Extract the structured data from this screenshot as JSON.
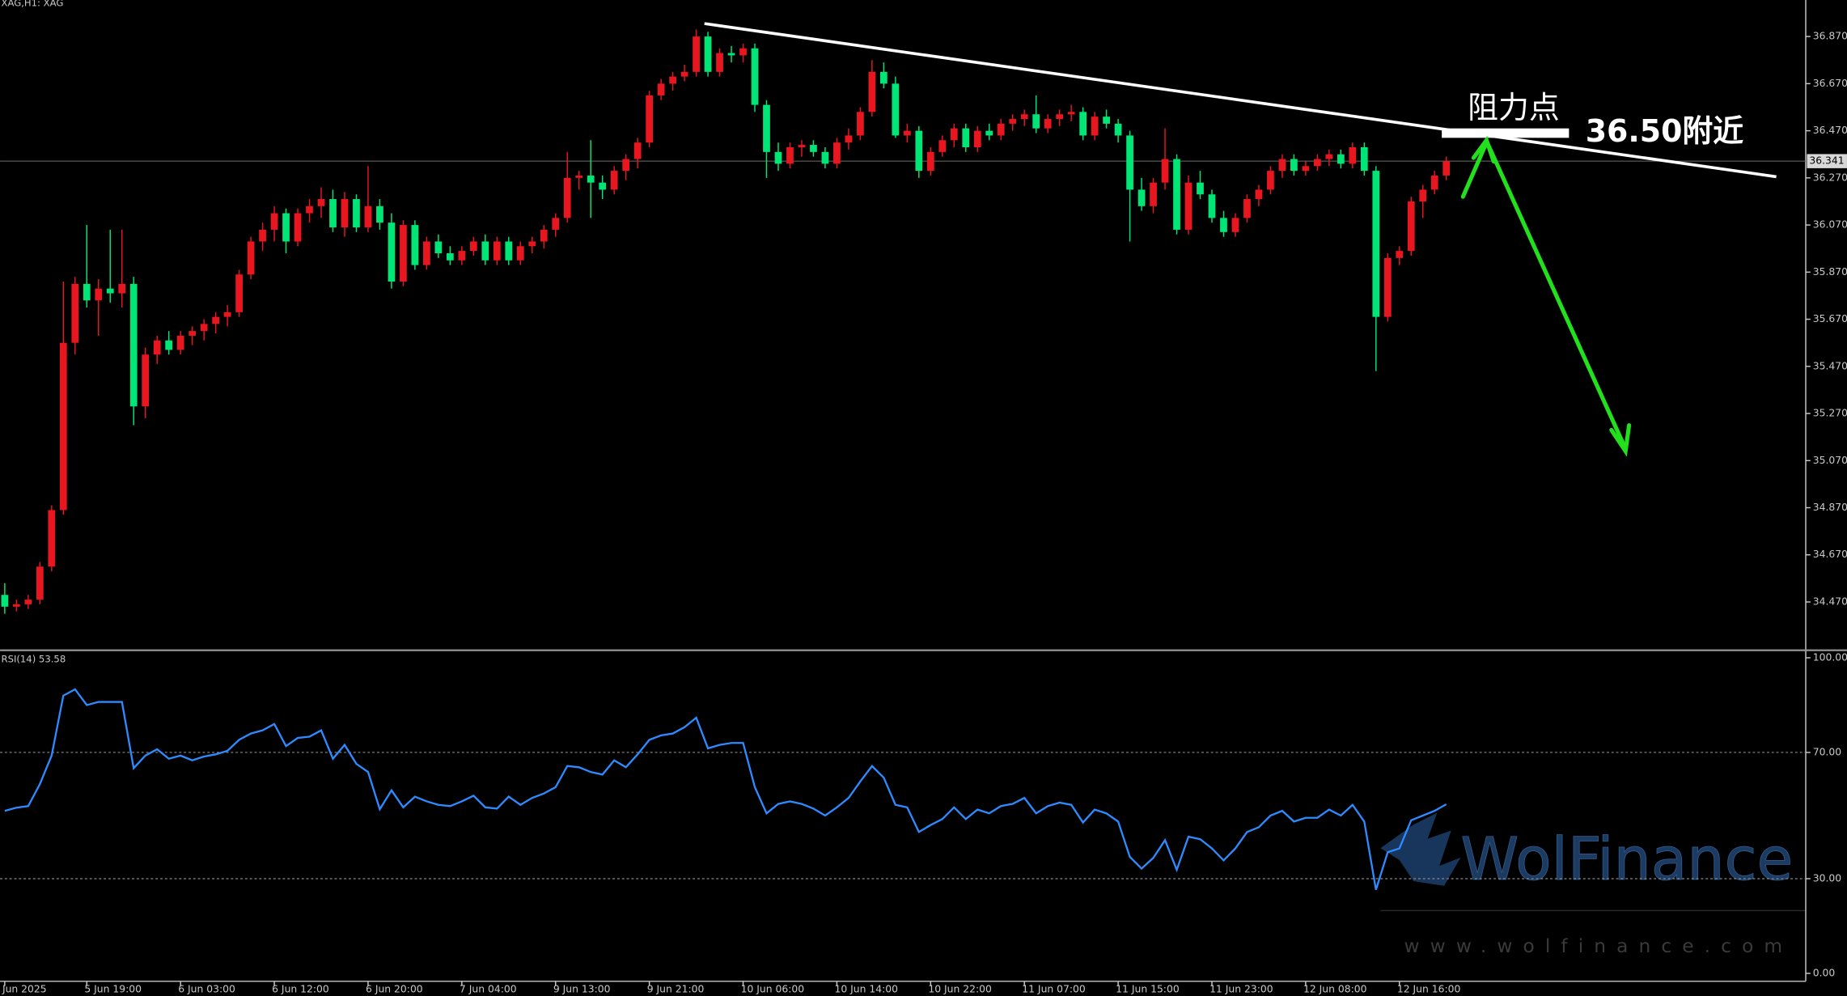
{
  "chart_data": [
    {
      "type": "candlestick",
      "title": "XAG,H1: XAG",
      "categories": [
        "Jun 2025",
        null,
        null,
        null,
        null,
        null,
        null,
        "5 Jun 19:00",
        null,
        null,
        null,
        null,
        null,
        null,
        null,
        "6 Jun 03:00",
        null,
        null,
        null,
        null,
        null,
        null,
        null,
        "6 Jun 12:00",
        null,
        null,
        null,
        null,
        null,
        null,
        null,
        "6 Jun 20:00",
        null,
        null,
        null,
        null,
        null,
        null,
        null,
        "7 Jun 04:00",
        null,
        null,
        null,
        null,
        null,
        null,
        null,
        "9 Jun 13:00",
        null,
        null,
        null,
        null,
        null,
        null,
        null,
        "9 Jun 21:00",
        null,
        null,
        null,
        null,
        null,
        null,
        null,
        "10 Jun 06:00",
        null,
        null,
        null,
        null,
        null,
        null,
        null,
        "10 Jun 14:00",
        null,
        null,
        null,
        null,
        null,
        null,
        null,
        "10 Jun 22:00",
        null,
        null,
        null,
        null,
        null,
        null,
        null,
        "11 Jun 07:00",
        null,
        null,
        null,
        null,
        null,
        null,
        null,
        "11 Jun 15:00",
        null,
        null,
        null,
        null,
        null,
        null,
        null,
        "11 Jun 23:00",
        null,
        null,
        null,
        null,
        null,
        null,
        null,
        "12 Jun 08:00",
        null,
        null,
        null,
        null,
        null,
        null,
        null,
        "12 Jun 16:00",
        null,
        null,
        null,
        null
      ],
      "open": [
        34.5,
        34.45,
        34.46,
        34.48,
        34.62,
        34.86,
        35.57,
        35.82,
        35.75,
        35.8,
        35.78,
        35.82,
        35.3,
        35.52,
        35.58,
        35.54,
        35.6,
        35.62,
        35.65,
        35.68,
        35.7,
        35.86,
        36.0,
        36.05,
        36.12,
        36.0,
        36.12,
        36.15,
        36.18,
        36.06,
        36.18,
        36.06,
        36.15,
        36.08,
        35.83,
        36.07,
        35.9,
        36.0,
        35.95,
        35.92,
        35.96,
        36.0,
        35.92,
        36.0,
        35.92,
        35.98,
        36.0,
        36.05,
        36.1,
        36.27,
        36.28,
        36.25,
        36.22,
        36.3,
        36.35,
        36.42,
        36.62,
        36.67,
        36.7,
        36.72,
        36.87,
        36.72,
        36.8,
        36.79,
        36.82,
        36.58,
        36.38,
        36.33,
        36.4,
        36.41,
        36.38,
        36.33,
        36.42,
        36.45,
        36.55,
        36.72,
        36.67,
        36.45,
        36.47,
        36.3,
        36.38,
        36.43,
        36.48,
        36.4,
        36.47,
        36.45,
        36.5,
        36.52,
        36.54,
        36.48,
        36.52,
        36.54,
        36.55,
        36.45,
        36.53,
        36.5,
        36.45,
        36.22,
        36.15,
        36.25,
        36.35,
        36.05,
        36.25,
        36.2,
        36.1,
        36.04,
        36.1,
        36.18,
        36.22,
        36.3,
        36.35,
        36.3,
        36.32,
        36.35,
        36.37,
        36.33,
        36.4,
        36.3,
        35.68,
        35.93,
        35.96,
        36.17,
        36.22,
        36.28
      ],
      "high": [
        34.55,
        34.48,
        34.5,
        34.64,
        34.88,
        35.83,
        35.85,
        36.07,
        35.84,
        36.05,
        36.05,
        35.85,
        35.55,
        35.6,
        35.62,
        35.62,
        35.64,
        35.67,
        35.7,
        35.73,
        35.88,
        36.02,
        36.08,
        36.15,
        36.14,
        36.14,
        36.18,
        36.23,
        36.22,
        36.21,
        36.2,
        36.32,
        36.18,
        36.12,
        36.09,
        36.09,
        36.02,
        36.03,
        35.98,
        35.98,
        36.02,
        36.03,
        36.02,
        36.02,
        36.0,
        36.02,
        36.07,
        36.12,
        36.38,
        36.3,
        36.43,
        36.28,
        36.32,
        36.37,
        36.44,
        36.64,
        36.69,
        36.72,
        36.75,
        36.9,
        36.89,
        36.82,
        36.83,
        36.84,
        36.84,
        36.6,
        36.42,
        36.42,
        36.43,
        36.43,
        36.4,
        36.44,
        36.48,
        36.57,
        36.77,
        36.76,
        36.7,
        36.5,
        36.49,
        36.4,
        36.45,
        36.5,
        36.5,
        36.49,
        36.5,
        36.52,
        36.54,
        36.56,
        36.62,
        36.54,
        36.56,
        36.58,
        36.57,
        36.55,
        36.56,
        36.52,
        36.47,
        36.27,
        36.27,
        36.48,
        36.37,
        36.28,
        36.3,
        36.22,
        36.13,
        36.12,
        36.2,
        36.24,
        36.32,
        36.37,
        36.37,
        36.34,
        36.37,
        36.39,
        36.39,
        36.42,
        36.42,
        36.32,
        35.95,
        35.98,
        36.19,
        36.24,
        36.3,
        36.36
      ],
      "low": [
        34.42,
        34.43,
        34.44,
        34.46,
        34.6,
        34.84,
        35.52,
        35.72,
        35.6,
        35.74,
        35.72,
        35.22,
        35.25,
        35.48,
        35.52,
        35.52,
        35.56,
        35.58,
        35.61,
        35.64,
        35.68,
        35.84,
        35.96,
        36.0,
        35.95,
        35.98,
        36.08,
        36.1,
        36.04,
        36.02,
        36.04,
        36.04,
        36.05,
        35.8,
        35.81,
        35.88,
        35.88,
        35.93,
        35.9,
        35.9,
        35.94,
        35.9,
        35.9,
        35.9,
        35.9,
        35.95,
        35.97,
        36.02,
        36.08,
        36.22,
        36.1,
        36.18,
        36.2,
        36.26,
        36.31,
        36.4,
        36.6,
        36.64,
        36.68,
        36.7,
        36.7,
        36.7,
        36.76,
        36.76,
        36.55,
        36.27,
        36.3,
        36.31,
        36.36,
        36.36,
        36.31,
        36.31,
        36.39,
        36.43,
        36.53,
        36.65,
        36.44,
        36.42,
        36.27,
        36.28,
        36.36,
        36.4,
        36.38,
        36.38,
        36.43,
        36.43,
        36.47,
        36.49,
        36.46,
        36.46,
        36.49,
        36.51,
        36.43,
        36.43,
        36.48,
        36.42,
        36.0,
        36.13,
        36.12,
        36.22,
        36.03,
        36.03,
        36.18,
        36.08,
        36.02,
        36.02,
        36.08,
        36.15,
        36.2,
        36.27,
        36.28,
        36.28,
        36.3,
        36.32,
        36.31,
        36.31,
        36.28,
        35.45,
        35.66,
        35.9,
        35.94,
        36.1,
        36.2,
        36.26
      ],
      "close": [
        34.45,
        34.46,
        34.48,
        34.62,
        34.86,
        35.57,
        35.82,
        35.75,
        35.8,
        35.78,
        35.82,
        35.3,
        35.52,
        35.58,
        35.54,
        35.6,
        35.62,
        35.65,
        35.68,
        35.7,
        35.86,
        36.0,
        36.05,
        36.12,
        36.0,
        36.12,
        36.15,
        36.18,
        36.06,
        36.18,
        36.06,
        36.15,
        36.08,
        35.83,
        36.07,
        35.9,
        36.0,
        35.95,
        35.92,
        35.96,
        36.0,
        35.92,
        36.0,
        35.92,
        35.98,
        36.0,
        36.05,
        36.1,
        36.27,
        36.28,
        36.25,
        36.22,
        36.3,
        36.35,
        36.42,
        36.62,
        36.67,
        36.7,
        36.72,
        36.87,
        36.72,
        36.8,
        36.79,
        36.82,
        36.58,
        36.38,
        36.33,
        36.4,
        36.41,
        36.38,
        36.33,
        36.42,
        36.45,
        36.55,
        36.72,
        36.67,
        36.45,
        36.47,
        36.3,
        36.38,
        36.43,
        36.48,
        36.4,
        36.47,
        36.45,
        36.5,
        36.52,
        36.54,
        36.48,
        36.52,
        36.54,
        36.55,
        36.45,
        36.53,
        36.5,
        36.45,
        36.22,
        36.15,
        36.25,
        36.35,
        36.05,
        36.25,
        36.2,
        36.1,
        36.04,
        36.1,
        36.18,
        36.22,
        36.3,
        36.35,
        36.3,
        36.32,
        36.35,
        36.37,
        36.33,
        36.4,
        36.3,
        35.68,
        35.93,
        35.96,
        36.17,
        36.22,
        36.28,
        36.341
      ],
      "up_color": "#e8161f",
      "down_color": "#00e676",
      "ylim": [
        34.27,
        37.025
      ],
      "yticks": [
        {
          "value": 36.87,
          "label": "36.870"
        },
        {
          "value": 36.67,
          "label": "36.670"
        },
        {
          "value": 36.47,
          "label": "36.470"
        },
        {
          "value": 36.27,
          "label": "36.270"
        },
        {
          "value": 36.07,
          "label": "36.070"
        },
        {
          "value": 35.87,
          "label": "35.870"
        },
        {
          "value": 35.67,
          "label": "35.670"
        },
        {
          "value": 35.47,
          "label": "35.470"
        },
        {
          "value": 35.27,
          "label": "35.270"
        },
        {
          "value": 35.07,
          "label": "35.070"
        },
        {
          "value": 34.87,
          "label": "34.870"
        },
        {
          "value": 34.67,
          "label": "34.670"
        },
        {
          "value": 34.47,
          "label": "34.470"
        }
      ],
      "last_price": 36.341,
      "annotations": [
        "阻力点",
        "36.50附近"
      ],
      "grid": false
    },
    {
      "type": "line",
      "title": "RSI(14) 53.58",
      "color": "#2e8bff",
      "values": [
        51.5,
        52.5,
        53,
        60,
        69,
        88,
        90,
        85,
        86,
        86,
        86,
        65,
        69,
        71,
        68,
        69,
        67.5,
        68.7,
        69.4,
        70.5,
        74,
        76,
        77,
        79,
        72,
        74.6,
        75,
        77,
        68,
        72.4,
        66.4,
        63.8,
        52,
        58,
        52.6,
        56,
        54.5,
        53.4,
        53,
        54.5,
        56.3,
        52.6,
        52.2,
        56,
        53.4,
        55.6,
        57,
        59,
        65.7,
        65.3,
        63.8,
        63,
        67.5,
        65.3,
        69.4,
        74,
        75.4,
        76,
        78,
        81,
        71.3,
        72.4,
        73,
        73,
        59,
        50.7,
        53.7,
        54.5,
        53.7,
        52.2,
        50,
        52.6,
        55.6,
        60.8,
        65.7,
        62,
        53.4,
        52.6,
        44.8,
        47,
        48.9,
        52.6,
        48.9,
        51.9,
        50.7,
        53,
        53.7,
        55.6,
        50.7,
        53,
        54.1,
        53.4,
        47.8,
        51.9,
        50.7,
        48.1,
        36.9,
        33.2,
        36.6,
        42.2,
        32.8,
        43.3,
        42.5,
        39.6,
        35.8,
        39.6,
        44.8,
        46.3,
        50,
        51.5,
        48.1,
        49.3,
        49.3,
        51.9,
        50,
        53.4,
        48.1,
        26.5,
        38.4,
        39.6,
        48.5,
        50,
        51.5,
        53.58
      ],
      "ylim": [
        -2.5,
        102
      ],
      "yticks": [
        {
          "value": 100,
          "label": "100.00"
        },
        {
          "value": 70,
          "label": "70.00"
        },
        {
          "value": 30,
          "label": "30.00"
        },
        {
          "value": 0,
          "label": "0.00"
        }
      ],
      "levels": [
        70,
        30
      ],
      "grid": false
    }
  ],
  "watermark": {
    "brand": "WolFinance",
    "url": "www.wolfinance.com"
  }
}
